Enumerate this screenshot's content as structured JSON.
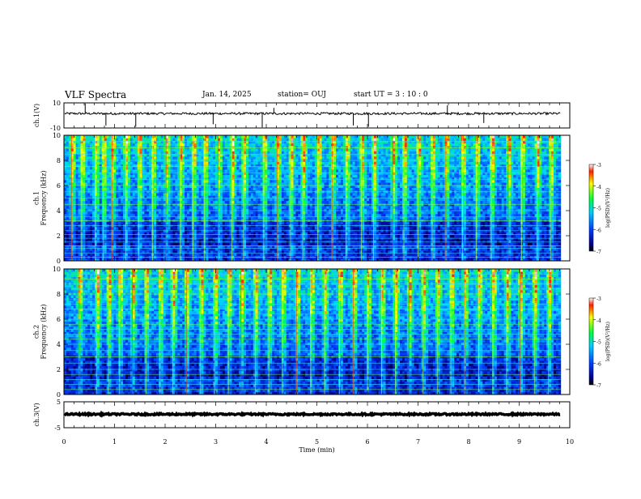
{
  "header": {
    "title": "VLF Spectra",
    "date": "Jan. 14, 2025",
    "station": "station= OUJ",
    "start": "start  UT =   3  : 10 : 0"
  },
  "chart_data": [
    {
      "type": "line",
      "name": "ch1-waveform",
      "ylabel": "ch.1(V)",
      "ylim": [
        -10,
        10
      ],
      "yticks": [
        "10",
        "-10"
      ],
      "xlim": [
        0,
        10
      ],
      "x_data_end": 9.82,
      "baseline": 1.5,
      "spikes": [
        {
          "x": 0.42,
          "y": 9.5
        },
        {
          "x": 0.83,
          "y": -8
        },
        {
          "x": 1.42,
          "y": -9
        },
        {
          "x": 2.95,
          "y": -7
        },
        {
          "x": 3.92,
          "y": -9.5
        },
        {
          "x": 4.15,
          "y": 6
        },
        {
          "x": 5.72,
          "y": -8
        },
        {
          "x": 6.02,
          "y": -9
        },
        {
          "x": 7.58,
          "y": 8
        },
        {
          "x": 8.3,
          "y": -6
        }
      ]
    },
    {
      "type": "heatmap",
      "name": "ch1-spectrogram",
      "ylabel": "ch.1\nFrequency  (kHz)",
      "ylim": [
        0,
        10
      ],
      "yticks": [
        "0",
        "2",
        "4",
        "6",
        "8",
        "10"
      ],
      "xlim": [
        0,
        10
      ],
      "x_data_end": 9.82,
      "colorbar": {
        "label": "log(PSD)(V²/Hz)",
        "range": [
          -7,
          -3
        ],
        "ticks": [
          "-3",
          "-4",
          "-5",
          "-6",
          "-7"
        ]
      },
      "horizontal_lines_khz": [
        0.3,
        0.6,
        1.0,
        1.2,
        1.5,
        1.8,
        2.1,
        2.4,
        2.8,
        3.2,
        3.5,
        4.0,
        4.5,
        5.0,
        5.5,
        6.0,
        6.5,
        7.0,
        7.5,
        8.0,
        8.5,
        9.0,
        9.5
      ],
      "bright_events_min": [
        0.15,
        0.35,
        0.62,
        0.78,
        0.95,
        1.22,
        1.48,
        1.75,
        2.02,
        2.3,
        2.55,
        2.78,
        3.05,
        3.32,
        3.55,
        3.95,
        4.22,
        4.48,
        4.72,
        5.02,
        5.3,
        5.58,
        5.88,
        6.12,
        6.5,
        6.72,
        7.0,
        7.28,
        7.55,
        7.88,
        8.15,
        8.45,
        8.78,
        9.05,
        9.35,
        9.62
      ]
    },
    {
      "type": "heatmap",
      "name": "ch2-spectrogram",
      "ylabel": "ch.2\nFrequency  (kHz)",
      "ylim": [
        0,
        10
      ],
      "yticks": [
        "0",
        "2",
        "4",
        "6",
        "8",
        "10"
      ],
      "xlim": [
        0,
        10
      ],
      "x_data_end": 9.82,
      "colorbar": {
        "label": "log(PSD)(V²/Hz)",
        "range": [
          -7,
          -3
        ],
        "ticks": [
          "-3",
          "-4",
          "-5",
          "-6",
          "-7"
        ]
      },
      "horizontal_lines_khz": [
        0.4,
        0.8,
        1.2,
        1.6,
        2.0,
        2.5,
        3.0,
        3.5,
        4.0,
        4.4,
        4.8,
        5.2,
        5.6,
        6.0,
        6.4,
        6.8,
        7.2,
        7.6,
        8.0,
        8.4,
        8.8,
        9.2,
        9.6
      ],
      "bright_events_min": [
        0.3,
        0.65,
        0.88,
        1.1,
        1.35,
        1.62,
        1.9,
        2.15,
        2.42,
        2.7,
        2.98,
        3.25,
        3.5,
        3.78,
        4.05,
        4.32,
        4.6,
        4.88,
        5.15,
        5.45,
        5.72,
        6.0,
        6.28,
        6.55,
        6.82,
        7.1,
        7.38,
        7.65,
        7.92,
        8.2,
        8.48,
        8.75,
        9.02,
        9.3,
        9.58
      ]
    },
    {
      "type": "line",
      "name": "ch3-waveform",
      "ylabel": "ch.3(V)",
      "ylim": [
        -5,
        5
      ],
      "yticks": [
        "5",
        "-5"
      ],
      "xlim": [
        0,
        10
      ],
      "x_data_end": 9.82,
      "baseline": 0.2,
      "xlabel": "Time  (min)",
      "xticks": [
        "0",
        "1",
        "2",
        "3",
        "4",
        "5",
        "6",
        "7",
        "8",
        "9",
        "10"
      ]
    }
  ]
}
